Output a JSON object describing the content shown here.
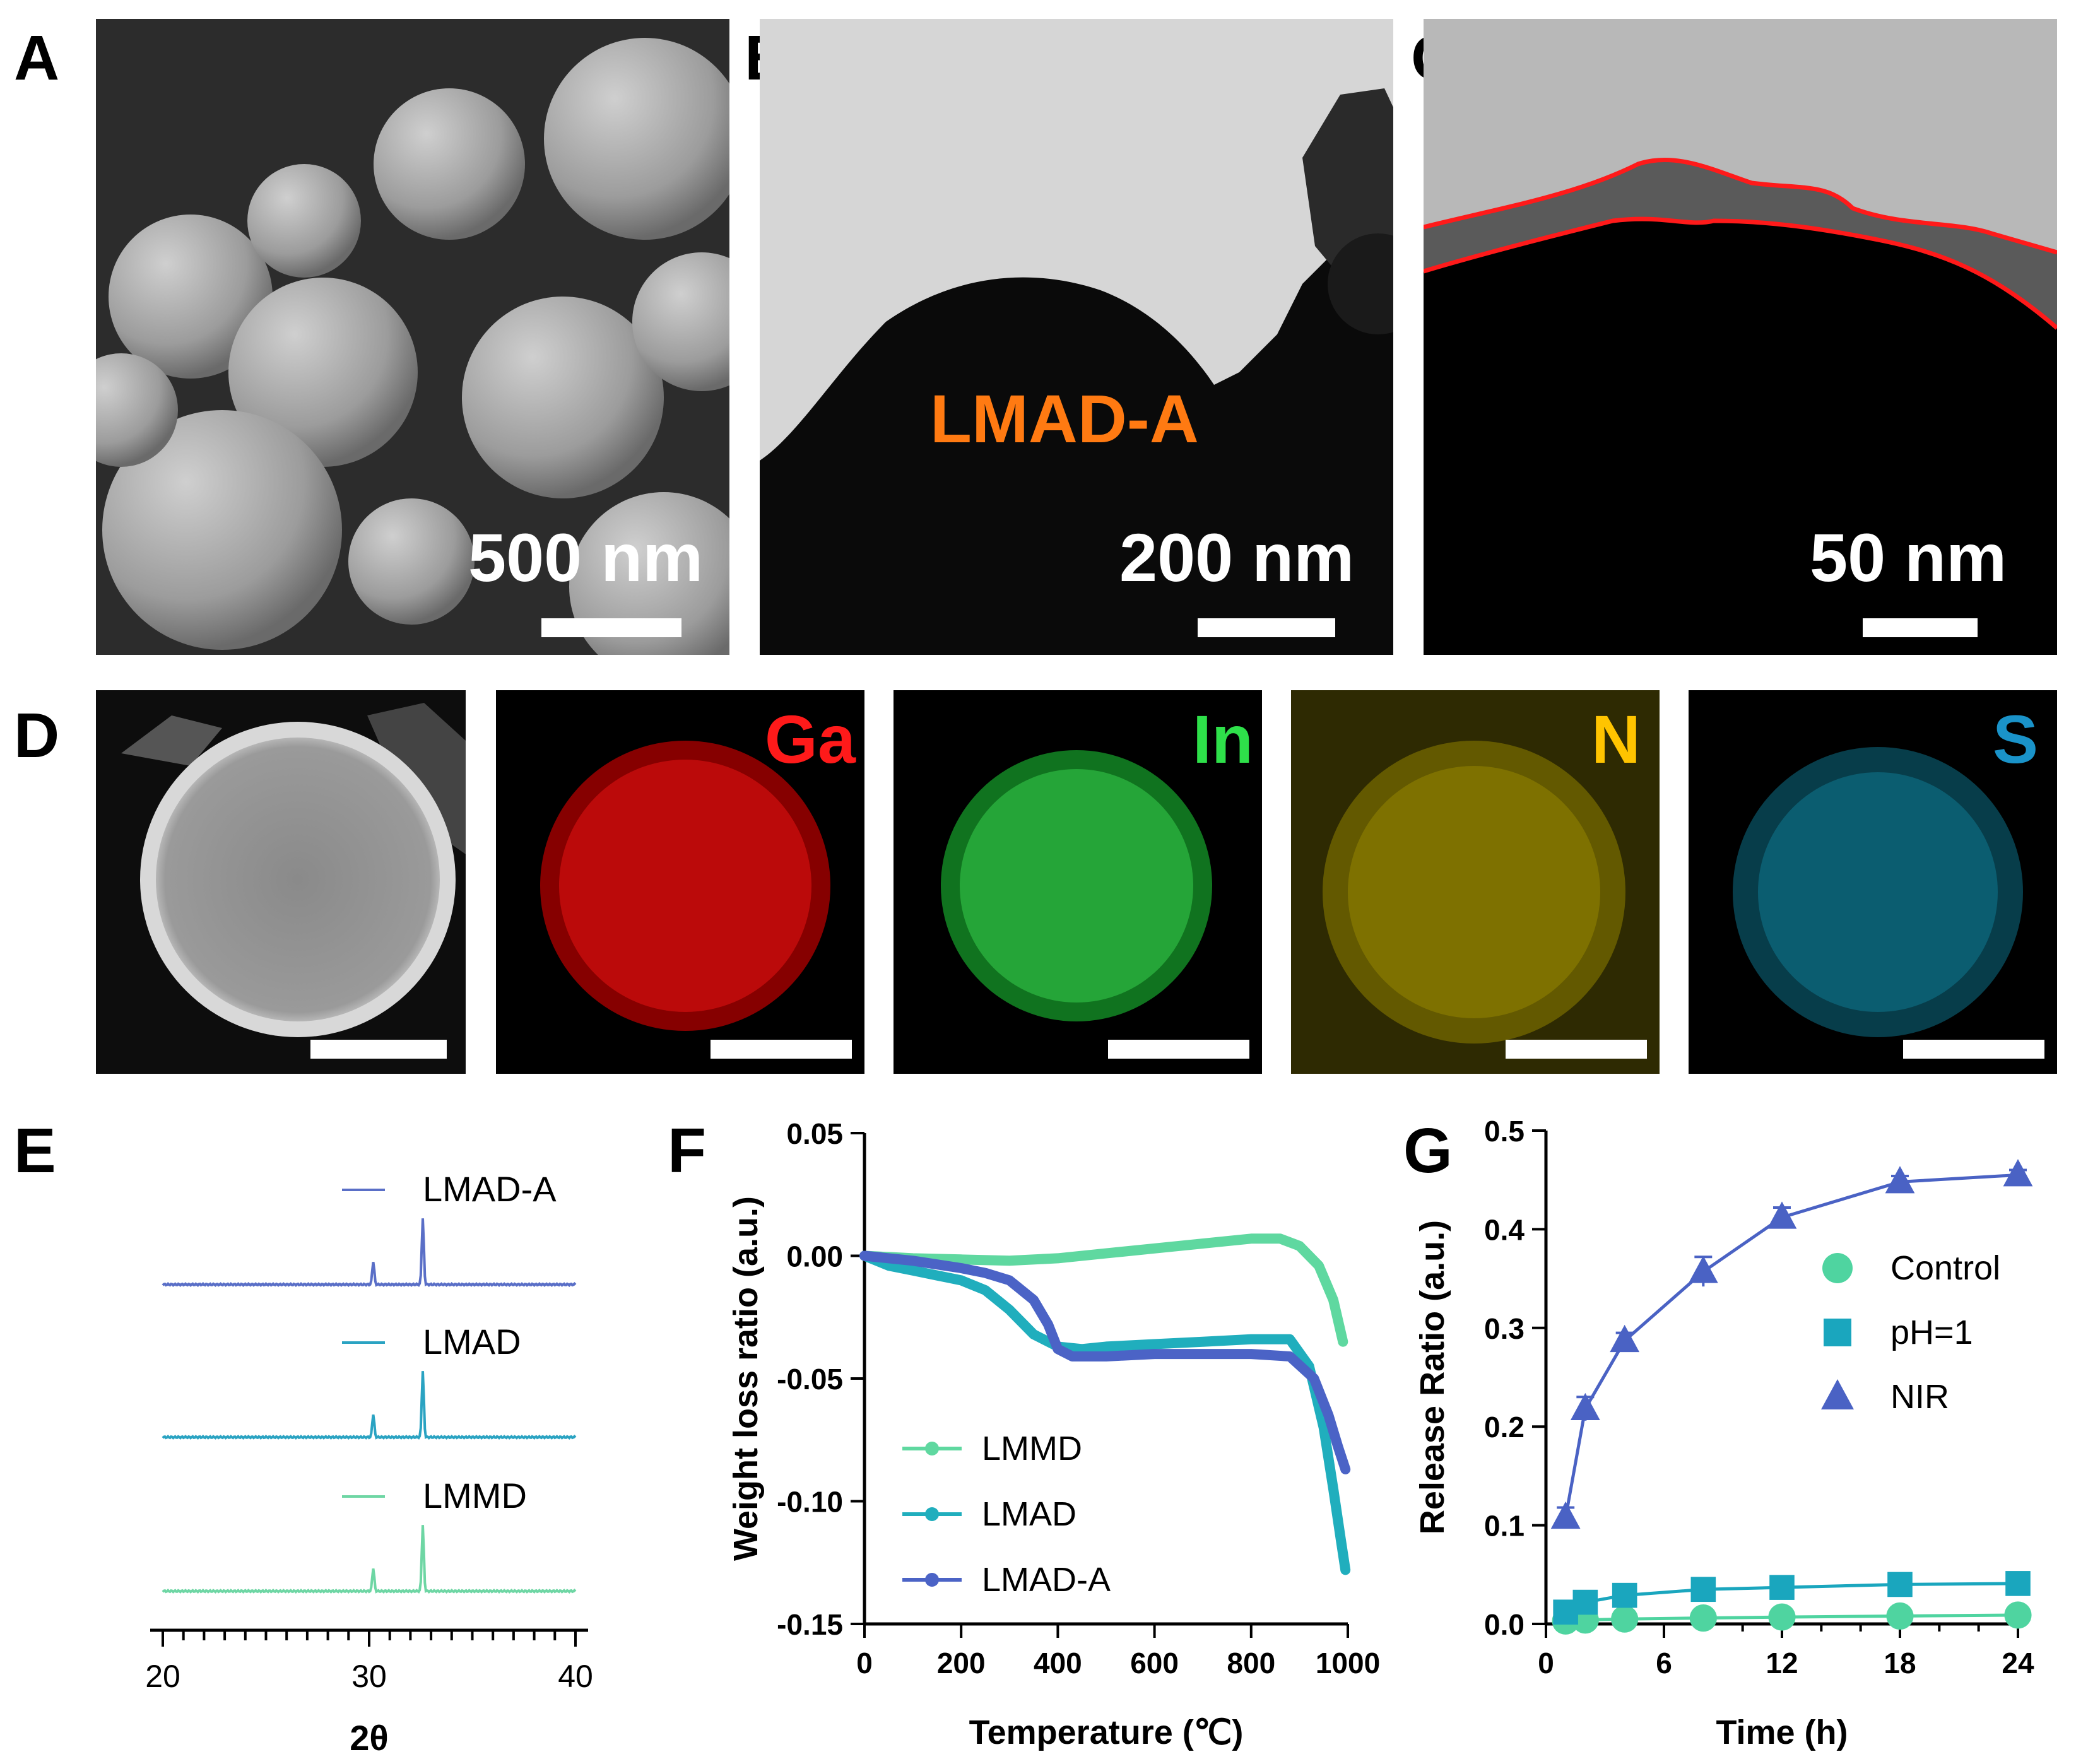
{
  "panels": {
    "A": {
      "letter": "A",
      "scale_label": "500 nm"
    },
    "B": {
      "letter": "B",
      "scale_label": "200 nm",
      "sample_label": "LMAD-A"
    },
    "C": {
      "letter": "C",
      "scale_label": "50 nm"
    },
    "D": {
      "letter": "D",
      "elements": [
        {
          "symbol": "Ga",
          "color": "#ff1a1a"
        },
        {
          "symbol": "In",
          "color": "#2ee04a"
        },
        {
          "symbol": "N",
          "color": "#ffc400"
        },
        {
          "symbol": "S",
          "color": "#1a93c9"
        }
      ]
    },
    "E": {
      "letter": "E"
    },
    "F": {
      "letter": "F"
    },
    "G": {
      "letter": "G"
    }
  },
  "chart_data": [
    {
      "id": "E",
      "type": "line",
      "title": "",
      "xlabel": "2θ",
      "ylabel": "",
      "xlim": [
        20,
        40
      ],
      "xticks": [
        20,
        30,
        40
      ],
      "series": [
        {
          "name": "LMAD-A",
          "color": "#5a6fc7",
          "peaks": [
            {
              "x": 30.2,
              "h": 0.35
            },
            {
              "x": 32.6,
              "h": 1.0
            }
          ]
        },
        {
          "name": "LMAD",
          "color": "#2aa3c2",
          "peaks": [
            {
              "x": 30.2,
              "h": 0.35
            },
            {
              "x": 32.6,
              "h": 1.0
            }
          ]
        },
        {
          "name": "LMMD",
          "color": "#6ed6a4",
          "peaks": [
            {
              "x": 30.2,
              "h": 0.35
            },
            {
              "x": 32.6,
              "h": 1.0
            }
          ]
        }
      ]
    },
    {
      "id": "F",
      "type": "line",
      "title": "",
      "xlabel": "Temperature (℃)",
      "ylabel": "Weight loss ratio (a.u.)",
      "xlim": [
        0,
        1000
      ],
      "ylim": [
        -0.15,
        0.05
      ],
      "xticks": [
        0,
        200,
        400,
        600,
        800,
        1000
      ],
      "yticks": [
        0.05,
        0.0,
        -0.05,
        -0.1,
        -0.15
      ],
      "yticklabels": [
        "0.05",
        "0.00",
        "-0.05",
        "-0.10",
        "-0.15"
      ],
      "legend": "bottom-left",
      "series": [
        {
          "name": "LMMD",
          "color": "#5fd8a0",
          "x": [
            0,
            50,
            100,
            200,
            300,
            400,
            500,
            600,
            700,
            800,
            860,
            900,
            940,
            970,
            990
          ],
          "y": [
            0.0,
            -0.0005,
            -0.001,
            -0.0015,
            -0.002,
            -0.001,
            0.001,
            0.003,
            0.005,
            0.007,
            0.007,
            0.004,
            -0.004,
            -0.018,
            -0.035
          ]
        },
        {
          "name": "LMAD",
          "color": "#20aebd",
          "x": [
            0,
            50,
            100,
            150,
            200,
            250,
            300,
            350,
            400,
            450,
            500,
            600,
            700,
            800,
            880,
            920,
            950,
            970,
            985,
            995
          ],
          "y": [
            0.0,
            -0.004,
            -0.006,
            -0.008,
            -0.01,
            -0.014,
            -0.022,
            -0.032,
            -0.037,
            -0.038,
            -0.037,
            -0.036,
            -0.035,
            -0.034,
            -0.034,
            -0.045,
            -0.07,
            -0.095,
            -0.115,
            -0.128
          ]
        },
        {
          "name": "LMAD-A",
          "color": "#4b63c6",
          "x": [
            0,
            100,
            200,
            250,
            300,
            350,
            380,
            400,
            430,
            500,
            600,
            700,
            800,
            880,
            930,
            960,
            980,
            995
          ],
          "y": [
            0.0,
            -0.002,
            -0.005,
            -0.007,
            -0.01,
            -0.018,
            -0.028,
            -0.038,
            -0.041,
            -0.041,
            -0.04,
            -0.04,
            -0.04,
            -0.041,
            -0.05,
            -0.065,
            -0.078,
            -0.087
          ]
        }
      ]
    },
    {
      "id": "G",
      "type": "line",
      "title": "",
      "xlabel": "Time (h)",
      "ylabel": "Release Ratio (a.u.)",
      "xlim": [
        0,
        24
      ],
      "ylim": [
        0,
        0.5
      ],
      "xticks": [
        0,
        6,
        12,
        18,
        24
      ],
      "yticks": [
        0.0,
        0.1,
        0.2,
        0.3,
        0.4,
        0.5
      ],
      "yticklabels": [
        "0.0",
        "0.1",
        "0.2",
        "0.3",
        "0.4",
        "0.5"
      ],
      "legend": "right",
      "series": [
        {
          "name": "Control",
          "marker": "circle",
          "color": "#4fd4a0",
          "x": [
            1,
            2,
            4,
            8,
            12,
            18,
            24
          ],
          "y": [
            0.003,
            0.004,
            0.005,
            0.006,
            0.007,
            0.008,
            0.009
          ]
        },
        {
          "name": "pH=1",
          "marker": "square",
          "color": "#1aa6be",
          "x": [
            1,
            2,
            4,
            8,
            12,
            18,
            24
          ],
          "y": [
            0.012,
            0.022,
            0.029,
            0.035,
            0.037,
            0.04,
            0.041
          ]
        },
        {
          "name": "NIR",
          "marker": "triangle",
          "color": "#4a62c4",
          "x": [
            1,
            2,
            4,
            8,
            12,
            18,
            24
          ],
          "y": [
            0.108,
            0.218,
            0.287,
            0.357,
            0.412,
            0.448,
            0.455
          ],
          "err": [
            0.01,
            0.012,
            0.008,
            0.015,
            0.01,
            0.006,
            0.005
          ]
        }
      ]
    }
  ]
}
